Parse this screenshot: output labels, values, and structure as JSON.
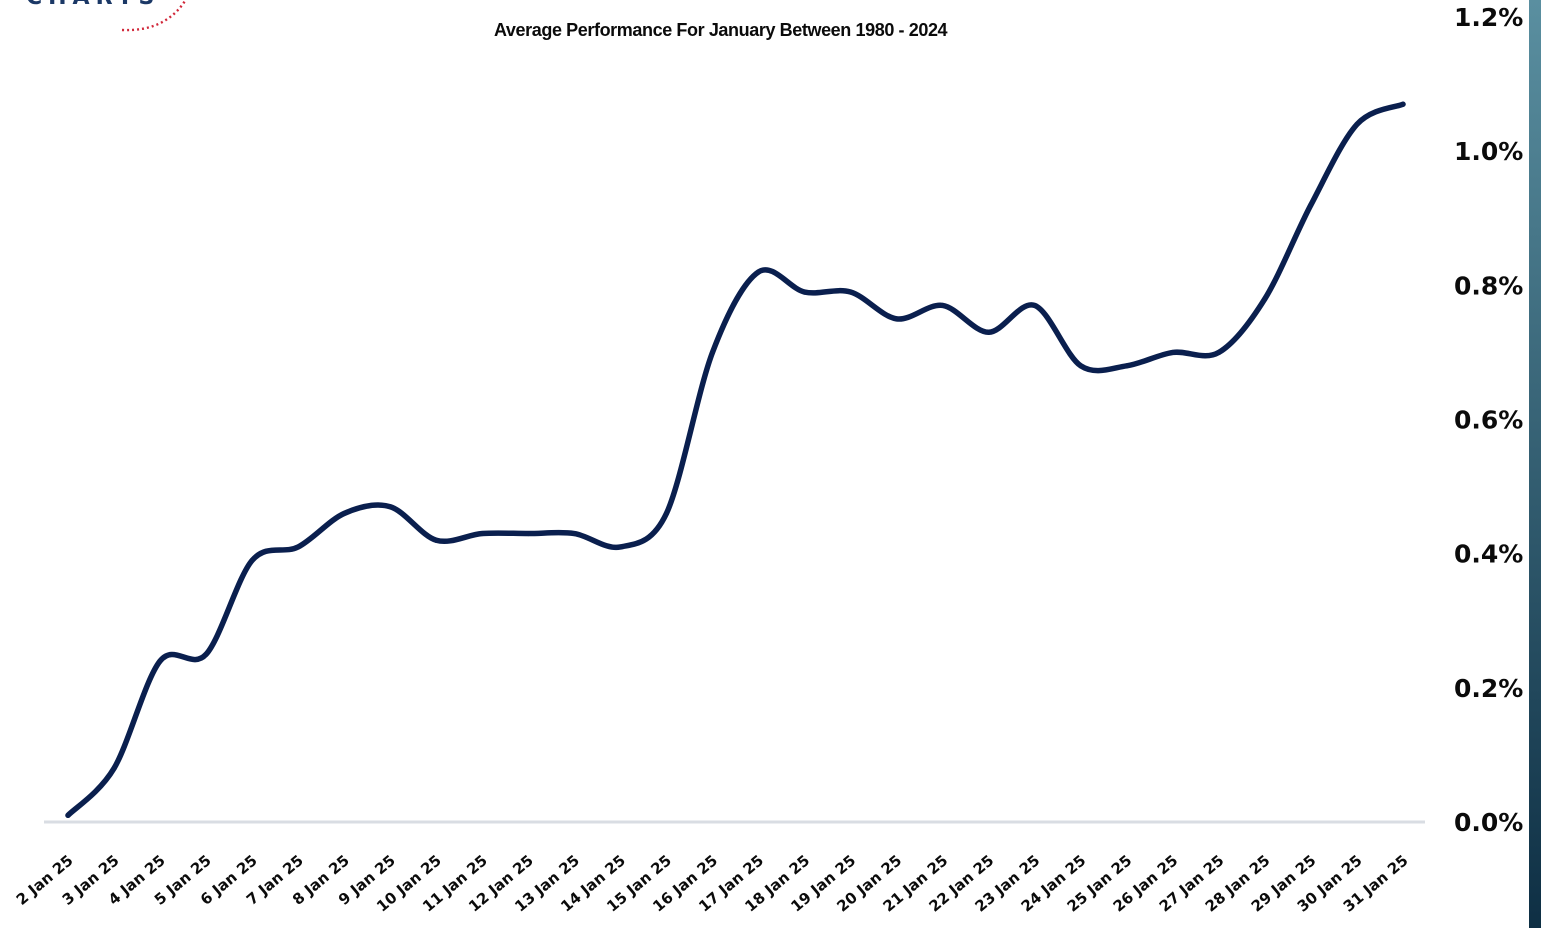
{
  "brand": {
    "logo_text": "CHARTS",
    "colors": {
      "line": "#0a1f4e",
      "axis": "#d9dde3",
      "logo_text": "#1b3866",
      "logo_dots": "#d1283a",
      "edge_strip_top": "#5a8fa0",
      "edge_strip_bottom": "#0e2f44"
    }
  },
  "chart_data": {
    "type": "line",
    "title": "Average Performance For January Between 1980 - 2024",
    "xlabel": "",
    "ylabel": "",
    "y_axis_position": "right",
    "ylim": [
      0,
      1.2
    ],
    "yticks": [
      "0.0%",
      "0.2%",
      "0.4%",
      "0.6%",
      "0.8%",
      "1.0%",
      "1.2%"
    ],
    "ytick_values": [
      0.0,
      0.2,
      0.4,
      0.6,
      0.8,
      1.0,
      1.2
    ],
    "grid": false,
    "legend": "none",
    "categories": [
      "2 Jan 25",
      "3 Jan 25",
      "4 Jan 25",
      "5 Jan 25",
      "6 Jan 25",
      "7 Jan 25",
      "8 Jan 25",
      "9 Jan 25",
      "10 Jan 25",
      "11 Jan 25",
      "12 Jan 25",
      "13 Jan 25",
      "14 Jan 25",
      "15 Jan 25",
      "16 Jan 25",
      "17 Jan 25",
      "18 Jan 25",
      "19 Jan 25",
      "20 Jan 25",
      "21 Jan 25",
      "22 Jan 25",
      "23 Jan 25",
      "24 Jan 25",
      "25 Jan 25",
      "26 Jan 25",
      "27 Jan 25",
      "28 Jan 25",
      "29 Jan 25",
      "30 Jan 25",
      "31 Jan 25"
    ],
    "series": [
      {
        "values": [
          0.01,
          0.08,
          0.24,
          0.25,
          0.39,
          0.41,
          0.46,
          0.47,
          0.42,
          0.43,
          0.43,
          0.43,
          0.41,
          0.46,
          0.7,
          0.82,
          0.79,
          0.79,
          0.75,
          0.77,
          0.73,
          0.77,
          0.68,
          0.68,
          0.7,
          0.7,
          0.78,
          0.92,
          1.04,
          1.07
        ]
      }
    ]
  }
}
